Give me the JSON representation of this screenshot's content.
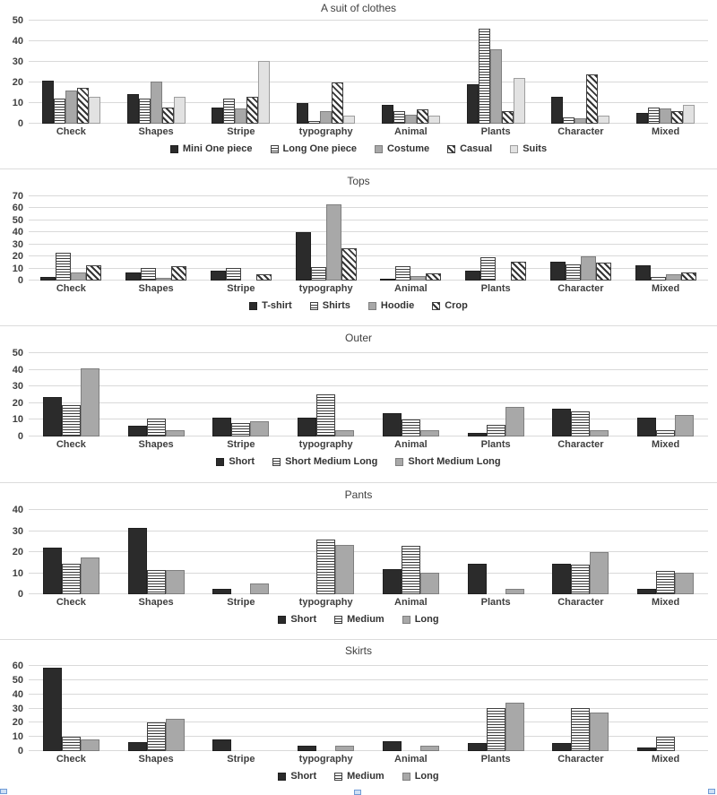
{
  "colors": {
    "bar_dark": "#2b2b2b",
    "bar_gray": "#a8a8a8",
    "bar_light": "#e2e2e2",
    "gridline": "#d9d9d9",
    "text": "#3f3f3f",
    "selection_handle": "#cfe0f5"
  },
  "charts": [
    {
      "type": "bar",
      "title": "A suit of clothes",
      "ylim": [
        0,
        50
      ],
      "yticks": [
        0,
        10,
        20,
        30,
        40,
        50
      ],
      "grid": true,
      "legend_position": "bottom",
      "categories": [
        "Check",
        "Shapes",
        "Stripe",
        "typography",
        "Animal",
        "Plants",
        "Character",
        "Mixed"
      ],
      "series": [
        {
          "name": "Mini One piece",
          "pattern": "solid-dark",
          "values": [
            21,
            14.5,
            8,
            10,
            9,
            19,
            13,
            5
          ]
        },
        {
          "name": "Long One piece",
          "pattern": "hlines",
          "values": [
            12,
            12,
            12,
            1.5,
            6,
            46,
            3,
            8
          ]
        },
        {
          "name": "Costume",
          "pattern": "solid-gray",
          "values": [
            16,
            20.5,
            7.5,
            6,
            4.5,
            36,
            2.5,
            7.5
          ]
        },
        {
          "name": "Casual",
          "pattern": "diag",
          "values": [
            17.5,
            8,
            13,
            20,
            7,
            6,
            24,
            6
          ]
        },
        {
          "name": "Suits",
          "pattern": "solid-light",
          "values": [
            13,
            13,
            30.5,
            4,
            4,
            22,
            4,
            9
          ]
        }
      ]
    },
    {
      "type": "bar",
      "title": "Tops",
      "ylim": [
        0,
        70
      ],
      "yticks": [
        0,
        10,
        20,
        30,
        40,
        50,
        60,
        70
      ],
      "grid": true,
      "legend_position": "bottom",
      "categories": [
        "Check",
        "Shapes",
        "Stripe",
        "typography",
        "Animal",
        "Plants",
        "Character",
        "Mixed"
      ],
      "series": [
        {
          "name": "T-shirt",
          "pattern": "solid-dark",
          "values": [
            3,
            7,
            8.5,
            40.5,
            1.5,
            8,
            16,
            13
          ]
        },
        {
          "name": "Shirts",
          "pattern": "hlines",
          "values": [
            23,
            10.5,
            10.5,
            11,
            12,
            19,
            13.5,
            3
          ]
        },
        {
          "name": "Hoodie",
          "pattern": "solid-gray",
          "values": [
            7,
            2,
            0,
            63,
            4,
            0,
            20,
            5.5
          ]
        },
        {
          "name": "Crop",
          "pattern": "diag",
          "values": [
            12.5,
            12,
            5.5,
            27,
            6,
            16,
            15,
            7
          ]
        }
      ]
    },
    {
      "type": "bar",
      "title": "Outer",
      "ylim": [
        0,
        50
      ],
      "yticks": [
        0,
        10,
        20,
        30,
        40,
        50
      ],
      "grid": true,
      "legend_position": "bottom",
      "categories": [
        "Check",
        "Shapes",
        "Stripe",
        "typography",
        "Animal",
        "Plants",
        "Character",
        "Mixed"
      ],
      "series": [
        {
          "name": "Short",
          "pattern": "solid-dark",
          "values": [
            23.5,
            6.5,
            11.5,
            11.5,
            14,
            2,
            16.5,
            11.5
          ]
        },
        {
          "name": "Short Medium Long",
          "pattern": "hlines",
          "values": [
            19,
            10.5,
            8,
            25.5,
            10,
            7,
            15,
            4
          ]
        },
        {
          "name": "Short Medium Long",
          "pattern": "solid-gray",
          "values": [
            41,
            4,
            9,
            4,
            4,
            18,
            4,
            13
          ]
        }
      ]
    },
    {
      "type": "bar",
      "title": "Pants",
      "ylim": [
        0,
        40
      ],
      "yticks": [
        0,
        10,
        20,
        30,
        40
      ],
      "grid": true,
      "legend_position": "bottom",
      "categories": [
        "Check",
        "Shapes",
        "Stripe",
        "typography",
        "Animal",
        "Plants",
        "Character",
        "Mixed"
      ],
      "series": [
        {
          "name": "Short",
          "pattern": "solid-dark",
          "values": [
            22,
            31.5,
            2.5,
            0,
            12,
            14.5,
            14.5,
            2.5
          ]
        },
        {
          "name": "Medium",
          "pattern": "hlines",
          "values": [
            14.5,
            11.5,
            0,
            26,
            23,
            0,
            14,
            11
          ]
        },
        {
          "name": "Long",
          "pattern": "solid-gray",
          "values": [
            17.5,
            11.5,
            5,
            23.5,
            10,
            2.5,
            20,
            10
          ]
        }
      ]
    },
    {
      "type": "bar",
      "title": "Skirts",
      "ylim": [
        0,
        60
      ],
      "yticks": [
        0,
        10,
        20,
        30,
        40,
        50,
        60
      ],
      "grid": true,
      "legend_position": "bottom",
      "categories": [
        "Check",
        "Shapes",
        "Stripe",
        "typography",
        "Animal",
        "Plants",
        "Character",
        "Mixed"
      ],
      "series": [
        {
          "name": "Short",
          "pattern": "solid-dark",
          "values": [
            58.5,
            6.5,
            8.5,
            4,
            7,
            5.5,
            5.5,
            2.5
          ]
        },
        {
          "name": "Medium",
          "pattern": "hlines",
          "values": [
            10,
            20,
            0,
            0,
            0,
            30,
            30,
            10
          ]
        },
        {
          "name": "Long",
          "pattern": "solid-gray",
          "values": [
            8,
            23,
            0,
            3.5,
            3.5,
            34,
            27,
            0
          ]
        }
      ]
    }
  ],
  "chart_data": [
    {
      "type": "bar",
      "title": "A suit of clothes",
      "categories": [
        "Check",
        "Shapes",
        "Stripe",
        "typography",
        "Animal",
        "Plants",
        "Character",
        "Mixed"
      ],
      "series": [
        {
          "name": "Mini One piece",
          "values": [
            21,
            14.5,
            8,
            10,
            9,
            19,
            13,
            5
          ]
        },
        {
          "name": "Long One piece",
          "values": [
            12,
            12,
            12,
            1.5,
            6,
            46,
            3,
            8
          ]
        },
        {
          "name": "Costume",
          "values": [
            16,
            20.5,
            7.5,
            6,
            4.5,
            36,
            2.5,
            7.5
          ]
        },
        {
          "name": "Casual",
          "values": [
            17.5,
            8,
            13,
            20,
            7,
            6,
            24,
            6
          ]
        },
        {
          "name": "Suits",
          "values": [
            13,
            13,
            30.5,
            4,
            4,
            22,
            4,
            9
          ]
        }
      ],
      "ylim": [
        0,
        50
      ],
      "grid": true,
      "legend_position": "bottom",
      "xlabel": "",
      "ylabel": ""
    },
    {
      "type": "bar",
      "title": "Tops",
      "categories": [
        "Check",
        "Shapes",
        "Stripe",
        "typography",
        "Animal",
        "Plants",
        "Character",
        "Mixed"
      ],
      "series": [
        {
          "name": "T-shirt",
          "values": [
            3,
            7,
            8.5,
            40.5,
            1.5,
            8,
            16,
            13
          ]
        },
        {
          "name": "Shirts",
          "values": [
            23,
            10.5,
            10.5,
            11,
            12,
            19,
            13.5,
            3
          ]
        },
        {
          "name": "Hoodie",
          "values": [
            7,
            2,
            0,
            63,
            4,
            0,
            20,
            5.5
          ]
        },
        {
          "name": "Crop",
          "values": [
            12.5,
            12,
            5.5,
            27,
            6,
            16,
            15,
            7
          ]
        }
      ],
      "ylim": [
        0,
        70
      ],
      "grid": true,
      "legend_position": "bottom",
      "xlabel": "",
      "ylabel": ""
    },
    {
      "type": "bar",
      "title": "Outer",
      "categories": [
        "Check",
        "Shapes",
        "Stripe",
        "typography",
        "Animal",
        "Plants",
        "Character",
        "Mixed"
      ],
      "series": [
        {
          "name": "Short",
          "values": [
            23.5,
            6.5,
            11.5,
            11.5,
            14,
            2,
            16.5,
            11.5
          ]
        },
        {
          "name": "Short Medium Long",
          "values": [
            19,
            10.5,
            8,
            25.5,
            10,
            7,
            15,
            4
          ]
        },
        {
          "name": "Short Medium Long",
          "values": [
            41,
            4,
            9,
            4,
            4,
            18,
            4,
            13
          ]
        }
      ],
      "ylim": [
        0,
        50
      ],
      "grid": true,
      "legend_position": "bottom",
      "xlabel": "",
      "ylabel": ""
    },
    {
      "type": "bar",
      "title": "Pants",
      "categories": [
        "Check",
        "Shapes",
        "Stripe",
        "typography",
        "Animal",
        "Plants",
        "Character",
        "Mixed"
      ],
      "series": [
        {
          "name": "Short",
          "values": [
            22,
            31.5,
            2.5,
            0,
            12,
            14.5,
            14.5,
            2.5
          ]
        },
        {
          "name": "Medium",
          "values": [
            14.5,
            11.5,
            0,
            26,
            23,
            0,
            14,
            11
          ]
        },
        {
          "name": "Long",
          "values": [
            17.5,
            11.5,
            5,
            23.5,
            10,
            2.5,
            20,
            10
          ]
        }
      ],
      "ylim": [
        0,
        40
      ],
      "grid": true,
      "legend_position": "bottom",
      "xlabel": "",
      "ylabel": ""
    },
    {
      "type": "bar",
      "title": "Skirts",
      "categories": [
        "Check",
        "Shapes",
        "Stripe",
        "typography",
        "Animal",
        "Plants",
        "Character",
        "Mixed"
      ],
      "series": [
        {
          "name": "Short",
          "values": [
            58.5,
            6.5,
            8.5,
            4,
            7,
            5.5,
            5.5,
            2.5
          ]
        },
        {
          "name": "Medium",
          "values": [
            10,
            20,
            0,
            0,
            0,
            30,
            30,
            10
          ]
        },
        {
          "name": "Long",
          "values": [
            8,
            23,
            0,
            3.5,
            3.5,
            34,
            27,
            0
          ]
        }
      ],
      "ylim": [
        0,
        60
      ],
      "grid": true,
      "legend_position": "bottom",
      "xlabel": "",
      "ylabel": ""
    }
  ]
}
